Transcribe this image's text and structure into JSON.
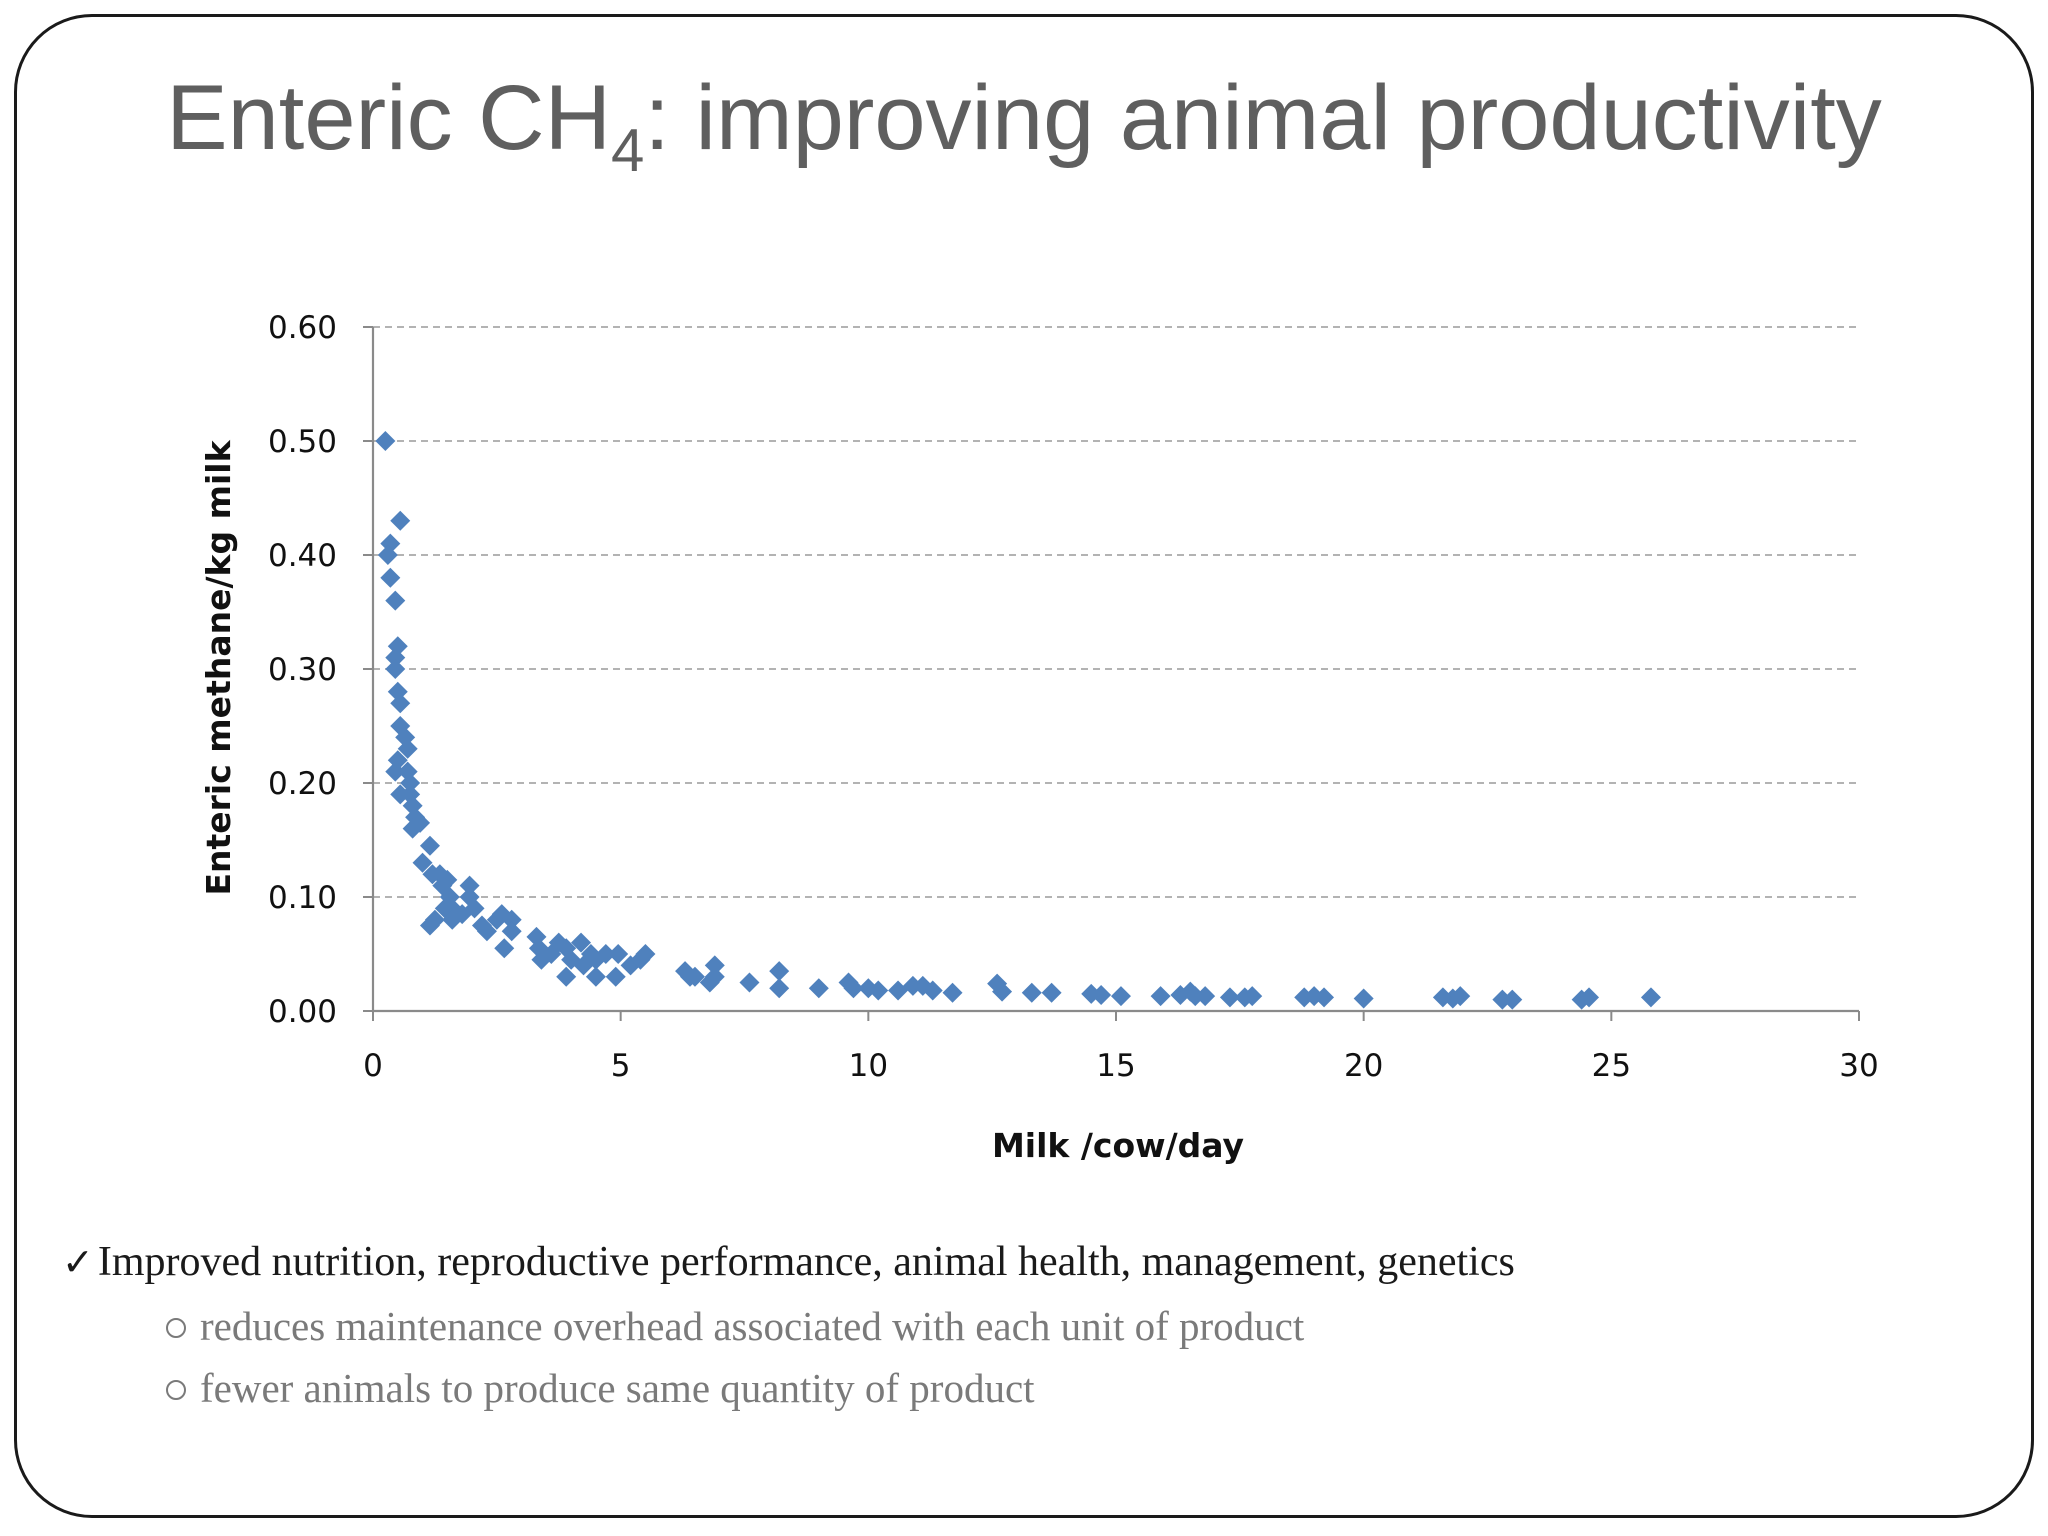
{
  "slide": {
    "title_main": "Enteric CH",
    "title_sub": "4",
    "title_rest": ": improving animal productivity"
  },
  "bullets": {
    "main": "Improved nutrition, reproductive performance, animal health, management, genetics",
    "check_icon": "checkmark-icon",
    "subs": [
      "reduces maintenance overhead associated with each unit of product",
      "fewer animals to produce same quantity of product"
    ]
  },
  "colors": {
    "marker": "#4f81bd",
    "title": "#5f5f5f",
    "grid": "#9a9a9a",
    "sub_text": "#7a7a7a"
  },
  "chart_data": {
    "type": "scatter",
    "title": "",
    "xlabel": "Milk /cow/day",
    "ylabel": "Enteric methane/kg milk",
    "xlim": [
      0,
      30
    ],
    "ylim": [
      0,
      0.6
    ],
    "xticks": [
      "0",
      "5",
      "10",
      "15",
      "20",
      "25",
      "30"
    ],
    "yticks": [
      "0.00",
      "0.10",
      "0.20",
      "0.30",
      "0.40",
      "0.50",
      "0.60"
    ],
    "grid": "horizontal-dashed",
    "legend": "none",
    "marker": "diamond",
    "points": [
      [
        0.25,
        0.5
      ],
      [
        0.55,
        0.43
      ],
      [
        0.35,
        0.41
      ],
      [
        0.3,
        0.4
      ],
      [
        0.35,
        0.38
      ],
      [
        0.45,
        0.36
      ],
      [
        0.5,
        0.32
      ],
      [
        0.45,
        0.31
      ],
      [
        0.45,
        0.3
      ],
      [
        0.5,
        0.28
      ],
      [
        0.55,
        0.27
      ],
      [
        0.55,
        0.25
      ],
      [
        0.65,
        0.24
      ],
      [
        0.7,
        0.23
      ],
      [
        0.5,
        0.22
      ],
      [
        0.45,
        0.21
      ],
      [
        0.7,
        0.21
      ],
      [
        0.75,
        0.2
      ],
      [
        0.75,
        0.19
      ],
      [
        0.55,
        0.19
      ],
      [
        0.8,
        0.18
      ],
      [
        0.85,
        0.17
      ],
      [
        0.8,
        0.16
      ],
      [
        0.95,
        0.165
      ],
      [
        1.0,
        0.13
      ],
      [
        1.15,
        0.145
      ],
      [
        1.2,
        0.12
      ],
      [
        1.35,
        0.12
      ],
      [
        1.4,
        0.11
      ],
      [
        1.5,
        0.115
      ],
      [
        1.55,
        0.1
      ],
      [
        1.6,
        0.09
      ],
      [
        1.45,
        0.09
      ],
      [
        1.6,
        0.08
      ],
      [
        1.8,
        0.085
      ],
      [
        1.95,
        0.11
      ],
      [
        1.95,
        0.1
      ],
      [
        2.05,
        0.09
      ],
      [
        2.2,
        0.075
      ],
      [
        2.3,
        0.07
      ],
      [
        2.5,
        0.08
      ],
      [
        2.6,
        0.085
      ],
      [
        2.8,
        0.08
      ],
      [
        2.8,
        0.07
      ],
      [
        2.65,
        0.055
      ],
      [
        1.15,
        0.075
      ],
      [
        1.25,
        0.08
      ],
      [
        3.3,
        0.065
      ],
      [
        3.35,
        0.055
      ],
      [
        3.4,
        0.045
      ],
      [
        3.6,
        0.05
      ],
      [
        3.75,
        0.06
      ],
      [
        3.9,
        0.055
      ],
      [
        3.9,
        0.03
      ],
      [
        4.0,
        0.045
      ],
      [
        4.2,
        0.06
      ],
      [
        4.25,
        0.04
      ],
      [
        4.4,
        0.05
      ],
      [
        4.5,
        0.045
      ],
      [
        4.5,
        0.03
      ],
      [
        4.7,
        0.05
      ],
      [
        4.9,
        0.03
      ],
      [
        4.95,
        0.05
      ],
      [
        5.2,
        0.04
      ],
      [
        5.4,
        0.045
      ],
      [
        5.5,
        0.05
      ],
      [
        6.3,
        0.035
      ],
      [
        6.4,
        0.03
      ],
      [
        6.5,
        0.03
      ],
      [
        6.8,
        0.025
      ],
      [
        6.9,
        0.04
      ],
      [
        6.9,
        0.03
      ],
      [
        7.6,
        0.025
      ],
      [
        8.2,
        0.035
      ],
      [
        8.2,
        0.02
      ],
      [
        9.0,
        0.02
      ],
      [
        9.6,
        0.025
      ],
      [
        9.7,
        0.02
      ],
      [
        10.0,
        0.02
      ],
      [
        10.2,
        0.018
      ],
      [
        10.6,
        0.018
      ],
      [
        10.9,
        0.022
      ],
      [
        11.1,
        0.022
      ],
      [
        11.3,
        0.018
      ],
      [
        11.7,
        0.016
      ],
      [
        12.6,
        0.024
      ],
      [
        12.7,
        0.017
      ],
      [
        13.3,
        0.016
      ],
      [
        13.7,
        0.016
      ],
      [
        14.5,
        0.015
      ],
      [
        14.7,
        0.014
      ],
      [
        15.1,
        0.013
      ],
      [
        15.9,
        0.013
      ],
      [
        16.3,
        0.014
      ],
      [
        16.5,
        0.017
      ],
      [
        16.6,
        0.013
      ],
      [
        16.8,
        0.013
      ],
      [
        17.3,
        0.012
      ],
      [
        17.6,
        0.012
      ],
      [
        17.75,
        0.013
      ],
      [
        18.8,
        0.012
      ],
      [
        19.0,
        0.013
      ],
      [
        19.2,
        0.012
      ],
      [
        20.0,
        0.011
      ],
      [
        21.6,
        0.012
      ],
      [
        21.8,
        0.011
      ],
      [
        21.95,
        0.013
      ],
      [
        22.8,
        0.01
      ],
      [
        23.0,
        0.01
      ],
      [
        24.4,
        0.01
      ],
      [
        24.55,
        0.012
      ],
      [
        25.8,
        0.012
      ]
    ]
  }
}
